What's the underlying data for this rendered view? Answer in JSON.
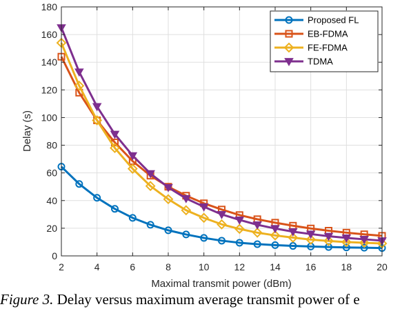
{
  "caption": {
    "label": "Figure 3.",
    "text": "Delay versus maximum average transmit power of e"
  },
  "chart_data": {
    "type": "line",
    "xlabel": "Maximal transmit power (dBm)",
    "ylabel": "Delay (s)",
    "xlim": [
      2,
      20
    ],
    "ylim": [
      0,
      180
    ],
    "xticks": [
      2,
      4,
      6,
      8,
      10,
      12,
      14,
      16,
      18,
      20
    ],
    "yticks": [
      0,
      20,
      40,
      60,
      80,
      100,
      120,
      140,
      160,
      180
    ],
    "grid": true,
    "legend_position": "top-right",
    "x": [
      2,
      3,
      4,
      5,
      6,
      7,
      8,
      9,
      10,
      11,
      12,
      13,
      14,
      15,
      16,
      17,
      18,
      19,
      20
    ],
    "series": [
      {
        "name": "Proposed FL",
        "color": "#0072BD",
        "marker": "circle",
        "values": [
          64.5,
          52,
          42,
          34,
          27.5,
          22.5,
          18.5,
          15.5,
          13,
          11,
          9.5,
          8.5,
          7.8,
          7.2,
          6.8,
          6.4,
          6.1,
          5.9,
          5.7
        ]
      },
      {
        "name": "EB-FDMA",
        "color": "#D95319",
        "marker": "square",
        "values": [
          144,
          118,
          98,
          82,
          68.5,
          58,
          50,
          43.5,
          38,
          33.5,
          29.5,
          26.5,
          24,
          21.8,
          19.8,
          18.2,
          16.8,
          15.6,
          14.5
        ]
      },
      {
        "name": "FE-FDMA",
        "color": "#EDB120",
        "marker": "diamond",
        "values": [
          154,
          123,
          98,
          78,
          63,
          50.5,
          41,
          33,
          27.5,
          22.8,
          19.5,
          16.8,
          14.8,
          13.2,
          11.8,
          10.8,
          10,
          9.5,
          9
        ]
      },
      {
        "name": "TDMA",
        "color": "#7E2F8E",
        "marker": "triangle-down",
        "values": [
          165,
          133,
          108,
          88,
          72.5,
          59.5,
          49.5,
          41.5,
          35.5,
          30,
          26,
          22.5,
          19.8,
          17.5,
          15.8,
          14.2,
          13,
          12,
          11
        ]
      }
    ]
  }
}
